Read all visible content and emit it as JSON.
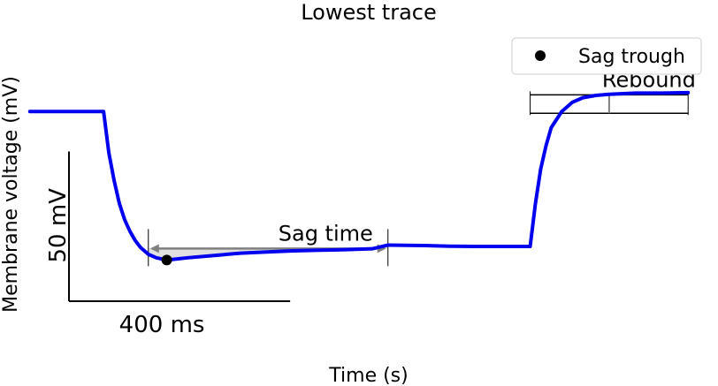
{
  "chart_data": {
    "type": "line",
    "title": "Lowest trace",
    "xlabel": "Time (s)",
    "ylabel": "Membrane voltage (mV)",
    "colors": {
      "trace": "#0000ee",
      "marker": "#000000",
      "annotation": "#808080",
      "sag_fill": "#d9d9d9"
    },
    "series": [
      {
        "x": [
          0.0,
          0.28,
          0.3,
          0.32,
          0.34,
          0.36,
          0.38,
          0.4,
          0.42,
          0.45,
          0.48,
          0.52,
          0.56,
          0.6,
          0.7,
          0.8,
          0.9,
          1.0,
          1.1,
          1.2,
          1.3,
          1.36,
          1.5,
          1.6,
          1.7,
          1.9,
          1.92,
          1.94,
          1.96,
          1.98,
          2.02,
          2.06,
          2.1,
          2.15,
          2.2,
          2.3,
          2.4,
          2.5
        ],
        "y": [
          -70,
          -70,
          -88,
          -100,
          -110,
          -117,
          -122,
          -126,
          -129,
          -132,
          -133.5,
          -134.5,
          -134,
          -133.5,
          -132.5,
          -131.5,
          -131,
          -130.5,
          -130.2,
          -130,
          -129.6,
          -128,
          -128.2,
          -128.5,
          -128.6,
          -128.6,
          -110,
          -95,
          -85,
          -77,
          -70,
          -66,
          -64,
          -63,
          -62.5,
          -62,
          -62,
          -61.8
        ]
      }
    ],
    "markers": [
      {
        "label": "Sag trough",
        "x": 0.52,
        "y": -134.5
      }
    ],
    "annotations": {
      "sag_time": {
        "label": "Sag time",
        "x_start": 0.45,
        "x_end": 1.36,
        "y": -129.5
      },
      "rebound": {
        "label": "Rebound",
        "x_start": 1.9,
        "x_end": 2.5,
        "y_low": -70,
        "y_high": -62
      }
    },
    "scalebar": {
      "x_label": "400 ms",
      "y_label": "50 mV",
      "x_length": 0.4,
      "y_length": 50
    },
    "xlim": [
      -0.1,
      2.6
    ],
    "ylim": [
      -175,
      -35
    ],
    "legend": {
      "placement": "top-right",
      "entries": [
        "Sag trough"
      ]
    },
    "grid": false
  }
}
